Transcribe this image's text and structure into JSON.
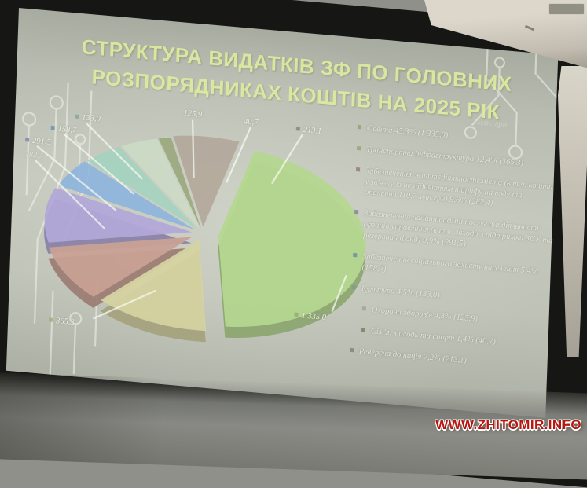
{
  "photo": {
    "watermark": "WWW.ZHITOMIR.INFO"
  },
  "slide": {
    "title_line1": "СТРУКТУРА ВИДАТКІВ ЗФ ПО ГОЛОВНИХ",
    "title_line2": "РОЗПОРЯДНИКАХ КОШТІВ НА 2025 РІК",
    "unit_note": "млн. грн"
  },
  "chart_data": {
    "type": "pie",
    "title": "СТРУКТУРА ВИДАТКІВ ЗФ ПО ГОЛОВНИХ РОЗПОРЯДНИКАХ КОШТІВ НА 2025 РІК",
    "unit": "млн грн",
    "legend_position": "right",
    "style": "3d-exploded-pie",
    "slices": [
      {
        "label": "Освіта",
        "percent": 45.3,
        "value": "1 335,0",
        "color": "#b4d88e"
      },
      {
        "label": "Транспортна інфраструктура",
        "percent": 12.4,
        "value": "365,3",
        "color": "#d6d3a0"
      },
      {
        "label": "Забезпечення життєдіяльності міста (в т.ч. кошти у зв'язку із не підняттям тарифу на воду та опалення 110,7 млн.грн)",
        "percent": 9.6,
        "value": "282,4",
        "color": "#c99e92"
      },
      {
        "label": "Забезпечення надання адмін послуг та діяльності органів управління (в т.ч. заходи з підтримки ЗСУ та резервний фонд)",
        "percent": 9.9,
        "value": "291,5",
        "color": "#b0a5da"
      },
      {
        "label": "Забезпечення соціального захисту населення",
        "percent": 5.4,
        "value": "158,7",
        "color": "#8db4de"
      },
      {
        "label": "Культура",
        "percent": 4.5,
        "value": "133,0",
        "color": "#a4d2c0"
      },
      {
        "label": "Охорона здоров'я",
        "percent": 4.3,
        "value": "125,9",
        "color": "#ccdcc6"
      },
      {
        "label": "Сім'я, молодь та спорт",
        "percent": 1.4,
        "value": "40,7",
        "color": "#9aa87c"
      },
      {
        "label": "Реверсна дотація",
        "percent": 7.2,
        "value": "213,1",
        "color": "#b2a89a"
      }
    ]
  },
  "legend": {
    "items": [
      {
        "text": "Освіта 45,3% (1 335,0)"
      },
      {
        "text": "Транспортна інфраструктура 12,4% (365,3)"
      },
      {
        "text": "Забезпечення життєдіяльності міста (в т.ч. кошти у зв'язку із не підняттям тарифу на воду та опалення 110,7 млн.грн) 9,6% (282,4)"
      },
      {
        "text": "Забезпечення надання адмін послуг та діяльності органів управління (в т.ч. заходи з підтримки ЗСУ та резервний фонд) 9,9% (291,5)"
      },
      {
        "text": "Забезпечення соціального захисту населення 5,4% (158,7)"
      },
      {
        "text": "Культура 4,5% (133,0)"
      },
      {
        "text": "Охорона здоров'я 4,3% (125,9)"
      },
      {
        "text": "Сім'я, молодь та спорт 1,4% (40,7)"
      },
      {
        "text": "Реверсна дотація 7,2% (213,1)"
      }
    ]
  }
}
